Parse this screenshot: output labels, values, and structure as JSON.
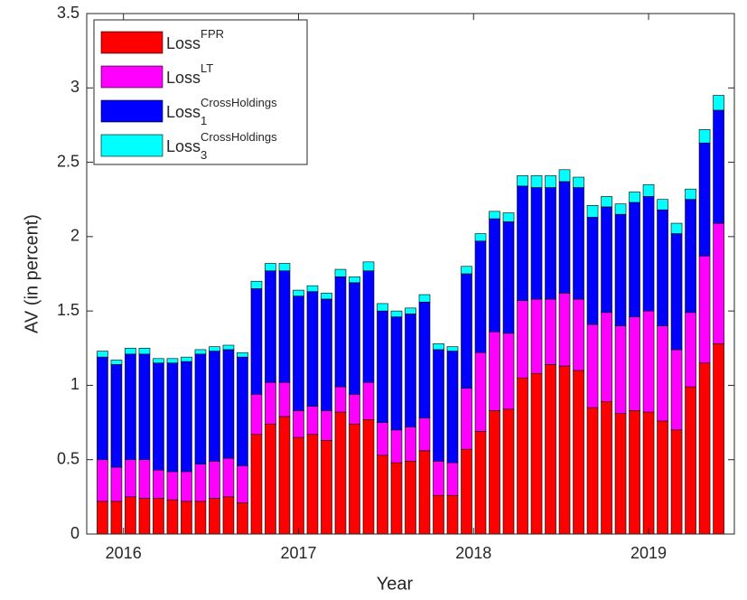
{
  "chart_data": {
    "type": "stacked_bar",
    "xlabel": "Year",
    "ylabel": "AV (in percent)",
    "x": [
      2015.88,
      2015.96,
      2016.04,
      2016.12,
      2016.2,
      2016.28,
      2016.36,
      2016.44,
      2016.52,
      2016.6,
      2016.68,
      2016.76,
      2016.84,
      2016.92,
      2017.0,
      2017.08,
      2017.16,
      2017.24,
      2017.32,
      2017.4,
      2017.48,
      2017.56,
      2017.64,
      2017.72,
      2017.8,
      2017.88,
      2017.96,
      2018.04,
      2018.12,
      2018.2,
      2018.28,
      2018.36,
      2018.44,
      2018.52,
      2018.6,
      2018.68,
      2018.76,
      2018.84,
      2018.92,
      2019.0,
      2019.08,
      2019.16,
      2019.24,
      2019.32,
      2019.4
    ],
    "xlim": [
      2015.79,
      2019.49
    ],
    "xticks": [
      2016,
      2017,
      2018,
      2019
    ],
    "ylim": [
      0,
      3.5
    ],
    "yticks": [
      0,
      0.5,
      1,
      1.5,
      2,
      2.5,
      3,
      3.5
    ],
    "grid": false,
    "legend": "upper left",
    "series": [
      {
        "name": "Loss",
        "superscript": "FPR",
        "color": "#ff0000",
        "values": [
          0.22,
          0.22,
          0.25,
          0.24,
          0.24,
          0.23,
          0.22,
          0.22,
          0.24,
          0.25,
          0.21,
          0.67,
          0.74,
          0.79,
          0.65,
          0.67,
          0.63,
          0.82,
          0.74,
          0.77,
          0.53,
          0.48,
          0.49,
          0.56,
          0.26,
          0.26,
          0.57,
          0.69,
          0.83,
          0.84,
          1.05,
          1.08,
          1.14,
          1.13,
          1.1,
          0.85,
          0.89,
          0.81,
          0.83,
          0.82,
          0.76,
          0.7,
          0.99,
          1.15,
          1.28
        ]
      },
      {
        "name": "Loss",
        "superscript": "LT",
        "color": "#ff00ff",
        "values": [
          0.28,
          0.23,
          0.25,
          0.26,
          0.19,
          0.19,
          0.2,
          0.25,
          0.25,
          0.26,
          0.25,
          0.27,
          0.28,
          0.23,
          0.18,
          0.19,
          0.2,
          0.17,
          0.2,
          0.25,
          0.22,
          0.22,
          0.23,
          0.22,
          0.23,
          0.22,
          0.41,
          0.53,
          0.53,
          0.51,
          0.52,
          0.5,
          0.44,
          0.49,
          0.48,
          0.56,
          0.6,
          0.59,
          0.63,
          0.68,
          0.64,
          0.54,
          0.5,
          0.72,
          0.81
        ]
      },
      {
        "name": "Loss",
        "superscript": "CrossHoldings",
        "subscript": "1",
        "color": "#0000ff",
        "values": [
          0.69,
          0.69,
          0.71,
          0.71,
          0.72,
          0.73,
          0.74,
          0.74,
          0.74,
          0.73,
          0.73,
          0.71,
          0.75,
          0.75,
          0.77,
          0.77,
          0.75,
          0.74,
          0.75,
          0.75,
          0.75,
          0.76,
          0.76,
          0.78,
          0.75,
          0.75,
          0.77,
          0.75,
          0.76,
          0.75,
          0.77,
          0.75,
          0.75,
          0.75,
          0.75,
          0.72,
          0.71,
          0.75,
          0.77,
          0.77,
          0.78,
          0.78,
          0.76,
          0.76,
          0.76
        ]
      },
      {
        "name": "Loss",
        "superscript": "CrossHoldings",
        "subscript": "3",
        "color": "#00ffff",
        "values": [
          0.04,
          0.03,
          0.04,
          0.04,
          0.03,
          0.03,
          0.03,
          0.03,
          0.03,
          0.03,
          0.03,
          0.05,
          0.05,
          0.05,
          0.04,
          0.04,
          0.04,
          0.05,
          0.04,
          0.06,
          0.05,
          0.04,
          0.04,
          0.05,
          0.04,
          0.03,
          0.05,
          0.05,
          0.05,
          0.06,
          0.07,
          0.08,
          0.08,
          0.08,
          0.07,
          0.08,
          0.07,
          0.07,
          0.07,
          0.08,
          0.07,
          0.07,
          0.07,
          0.09,
          0.1
        ]
      }
    ]
  }
}
